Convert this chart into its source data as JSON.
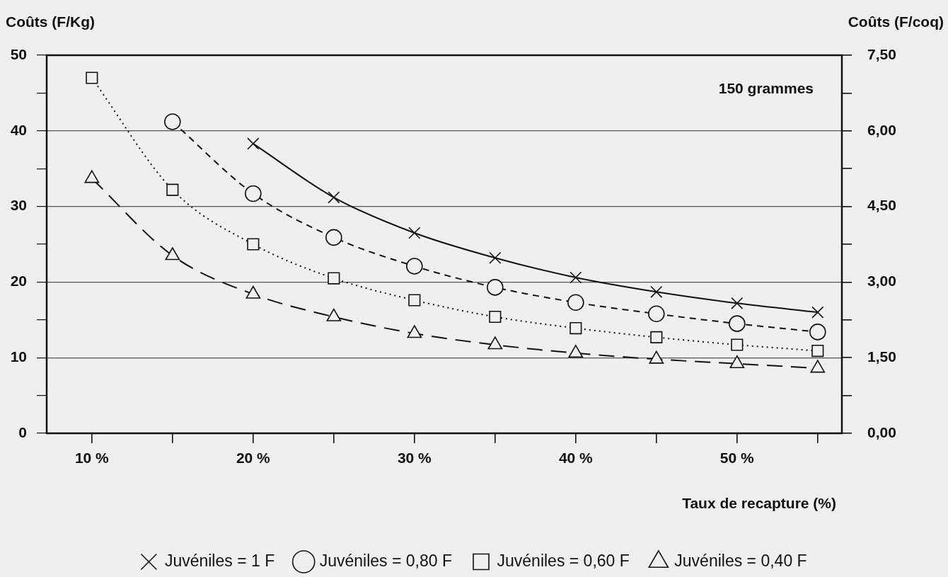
{
  "chart_data": {
    "type": "line",
    "ylabel": "Coûts (F/Kg)",
    "y2label": "Coûts (F/coq)",
    "xlabel": "Taux de recapture (%)",
    "annotations": [
      "150 grammes"
    ],
    "x": [
      10,
      15,
      20,
      25,
      30,
      35,
      40,
      45,
      50,
      55
    ],
    "series": [
      {
        "name": "Juvéniles = 1 F",
        "color": "#111111",
        "marker": "cross",
        "line_style": "solid",
        "values": [
          null,
          null,
          38.3,
          31.2,
          26.5,
          23.2,
          20.6,
          18.7,
          17.2,
          16.0
        ]
      },
      {
        "name": "Juvéniles = 0,80 F",
        "color": "#111111",
        "marker": "circle",
        "line_style": "dashed",
        "values": [
          null,
          41.2,
          31.7,
          25.9,
          22.1,
          19.3,
          17.3,
          15.8,
          14.5,
          13.4
        ]
      },
      {
        "name": "Juvéniles = 0,60 F",
        "color": "#111111",
        "marker": "square",
        "line_style": "dotted",
        "values": [
          47,
          32.2,
          25.0,
          20.5,
          17.6,
          15.4,
          13.9,
          12.7,
          11.7,
          10.9
        ]
      },
      {
        "name": "Juvéniles = 0,40 F",
        "color": "#111111",
        "marker": "triangle",
        "line_style": "longdash",
        "values": [
          33.7,
          23.5,
          18.4,
          15.4,
          13.2,
          11.7,
          10.6,
          9.8,
          9.2,
          8.6
        ]
      }
    ],
    "xlim": [
      7.2,
      56.5
    ],
    "xticks": [
      {
        "value": 10,
        "label": "10 %"
      },
      {
        "value": 15,
        "label": null
      },
      {
        "value": 20,
        "label": "20 %"
      },
      {
        "value": 25,
        "label": null
      },
      {
        "value": 30,
        "label": "30 %"
      },
      {
        "value": 35,
        "label": null
      },
      {
        "value": 40,
        "label": "40 %"
      },
      {
        "value": 45,
        "label": null
      },
      {
        "value": 50,
        "label": "50 %"
      },
      {
        "value": 55,
        "label": null
      }
    ],
    "ylim": [
      0,
      50
    ],
    "yticks": [
      0,
      {
        "value": 5,
        "label": null
      },
      10,
      {
        "value": 15,
        "label": null
      },
      20,
      {
        "value": 25,
        "label": null
      },
      30,
      {
        "value": 35,
        "label": null
      },
      40,
      {
        "value": 45,
        "label": null
      },
      50
    ],
    "y2lim": [
      0,
      7.5
    ],
    "y2ticks": [
      {
        "value": 0,
        "label": "0,00"
      },
      {
        "value": 0.75,
        "label": null
      },
      {
        "value": 1.5,
        "label": "1,50"
      },
      {
        "value": 2.25,
        "label": null
      },
      {
        "value": 3,
        "label": "3,00"
      },
      {
        "value": 3.75,
        "label": null
      },
      {
        "value": 4.5,
        "label": "4,50"
      },
      {
        "value": 5.25,
        "label": null
      },
      {
        "value": 6,
        "label": "6,00"
      },
      {
        "value": 6.75,
        "label": null
      },
      {
        "value": 7.5,
        "label": "7,50"
      }
    ],
    "grid": "y",
    "legend": "bottom"
  }
}
